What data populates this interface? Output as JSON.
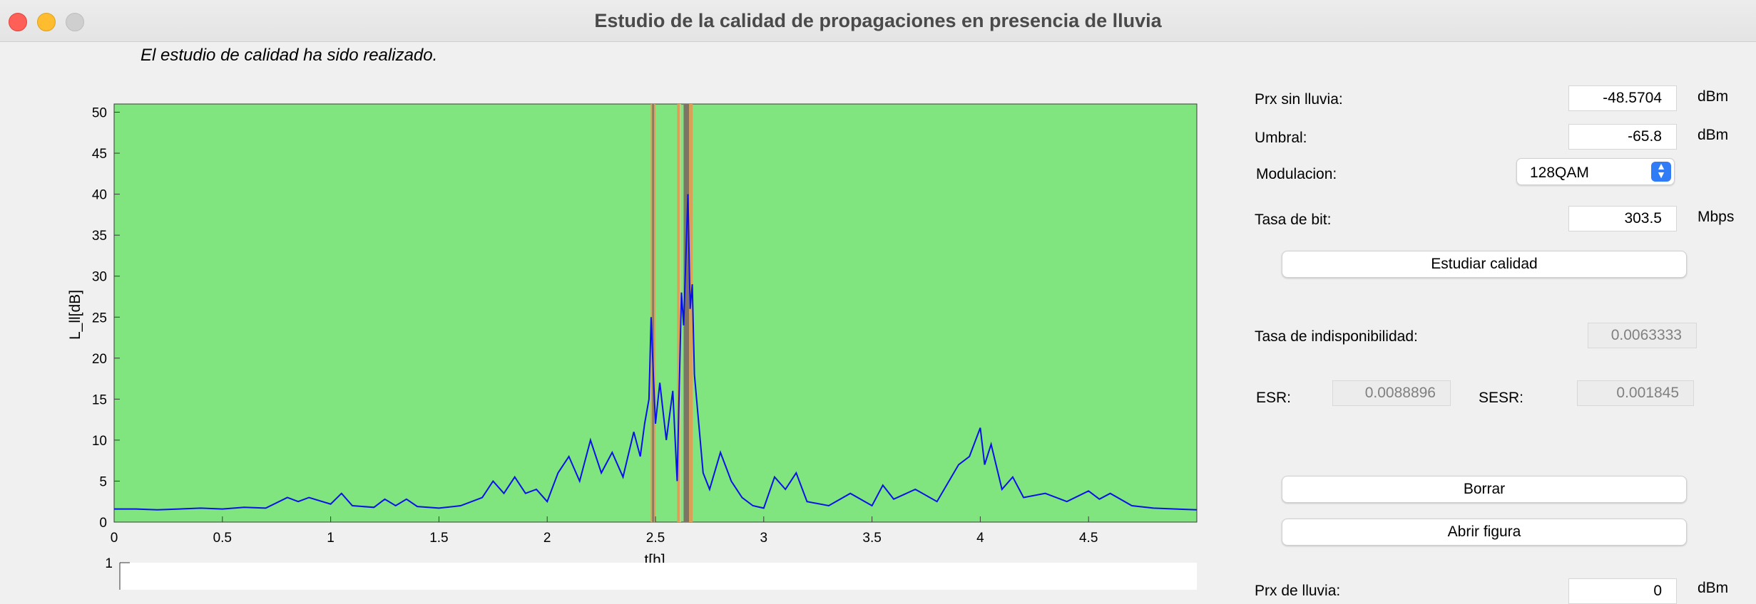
{
  "window": {
    "title": "Estudio de la calidad de propagaciones en presencia de lluvia"
  },
  "status_text": "El estudio de calidad ha sido realizado.",
  "controls": {
    "prx_label": "Prx sin lluvia:",
    "prx_value": "-48.5704",
    "prx_unit": "dBm",
    "umbral_label": "Umbral:",
    "umbral_value": "-65.8",
    "umbral_unit": "dBm",
    "modulacion_label": "Modulacion:",
    "modulacion_value": "128QAM",
    "tasa_label": "Tasa de bit:",
    "tasa_value": "303.5",
    "tasa_unit": "Mbps",
    "estudiar_button": "Estudiar calidad",
    "indisp_label": "Tasa de indisponibilidad:",
    "indisp_value": "0.0063333",
    "esr_label": "ESR:",
    "esr_value": "0.0088896",
    "sesr_label": "SESR:",
    "sesr_value": "0.001845",
    "borrar_button": "Borrar",
    "abrir_button": "Abrir figura",
    "bottom_unit": "dBm",
    "bottom_value": "0"
  },
  "colors": {
    "plot_bg": "#80e47f",
    "signal": "#0a12e8",
    "band_orange": "#d9a05a",
    "band_dark": "#7d7465",
    "band_light": "#b5d48a"
  },
  "chart_data": {
    "type": "line",
    "xlabel": "t[h]",
    "ylabel": "L_ll[dB]",
    "xlim": [
      0,
      5
    ],
    "ylim": [
      0,
      51
    ],
    "xticks": [
      "0",
      "0.5",
      "1",
      "1.5",
      "2",
      "2.5",
      "3",
      "3.5",
      "4",
      "4.5"
    ],
    "yticks": [
      "0",
      "5",
      "10",
      "15",
      "20",
      "25",
      "30",
      "35",
      "40",
      "45",
      "50"
    ],
    "bands": [
      {
        "x0": 2.478,
        "x1": 2.485,
        "color": "orange"
      },
      {
        "x0": 2.485,
        "x1": 2.493,
        "color": "dark"
      },
      {
        "x0": 2.493,
        "x1": 2.5,
        "color": "orange"
      },
      {
        "x0": 2.6,
        "x1": 2.612,
        "color": "orange"
      },
      {
        "x0": 2.612,
        "x1": 2.618,
        "color": "light"
      },
      {
        "x0": 2.63,
        "x1": 2.655,
        "color": "dark"
      },
      {
        "x0": 2.655,
        "x1": 2.672,
        "color": "orange"
      }
    ],
    "series": [
      {
        "x": [
          0,
          0.1,
          0.2,
          0.3,
          0.4,
          0.5,
          0.6,
          0.7,
          0.8,
          0.85,
          0.9,
          1.0,
          1.05,
          1.1,
          1.2,
          1.25,
          1.3,
          1.35,
          1.4,
          1.5,
          1.6,
          1.7,
          1.75,
          1.8,
          1.85,
          1.9,
          1.95,
          2.0,
          2.05,
          2.1,
          2.15,
          2.2,
          2.25,
          2.3,
          2.35,
          2.4,
          2.43,
          2.45,
          2.47,
          2.48,
          2.49,
          2.5,
          2.52,
          2.55,
          2.58,
          2.6,
          2.62,
          2.63,
          2.64,
          2.65,
          2.66,
          2.67,
          2.68,
          2.7,
          2.72,
          2.75,
          2.8,
          2.85,
          2.9,
          2.95,
          3.0,
          3.05,
          3.1,
          3.15,
          3.2,
          3.3,
          3.4,
          3.5,
          3.55,
          3.6,
          3.7,
          3.8,
          3.9,
          3.95,
          4.0,
          4.02,
          4.05,
          4.1,
          4.15,
          4.2,
          4.3,
          4.4,
          4.5,
          4.55,
          4.6,
          4.7,
          4.8,
          4.9,
          5.0
        ],
        "y": [
          1.6,
          1.6,
          1.5,
          1.6,
          1.7,
          1.6,
          1.8,
          1.7,
          3.0,
          2.5,
          3.0,
          2.2,
          3.5,
          2.0,
          1.8,
          2.8,
          2.0,
          2.8,
          1.9,
          1.7,
          2.0,
          3.0,
          5.0,
          3.5,
          5.5,
          3.5,
          4.0,
          2.5,
          6.0,
          8.0,
          5.0,
          10.0,
          6.0,
          8.5,
          5.5,
          11.0,
          8.0,
          12.0,
          15.0,
          25.0,
          18.0,
          12.0,
          17.0,
          10.0,
          16.0,
          5.0,
          28.0,
          24.0,
          32.0,
          40.0,
          26.0,
          29.0,
          18.0,
          12.0,
          6.0,
          4.0,
          8.5,
          5.0,
          3.0,
          2.0,
          1.7,
          5.5,
          4.0,
          6.0,
          2.5,
          2.0,
          3.5,
          2.0,
          4.5,
          2.8,
          4.0,
          2.5,
          7.0,
          8.0,
          11.5,
          7.0,
          9.5,
          4.0,
          5.5,
          3.0,
          3.5,
          2.5,
          3.8,
          2.8,
          3.5,
          2.0,
          1.7,
          1.6,
          1.5
        ]
      }
    ]
  }
}
